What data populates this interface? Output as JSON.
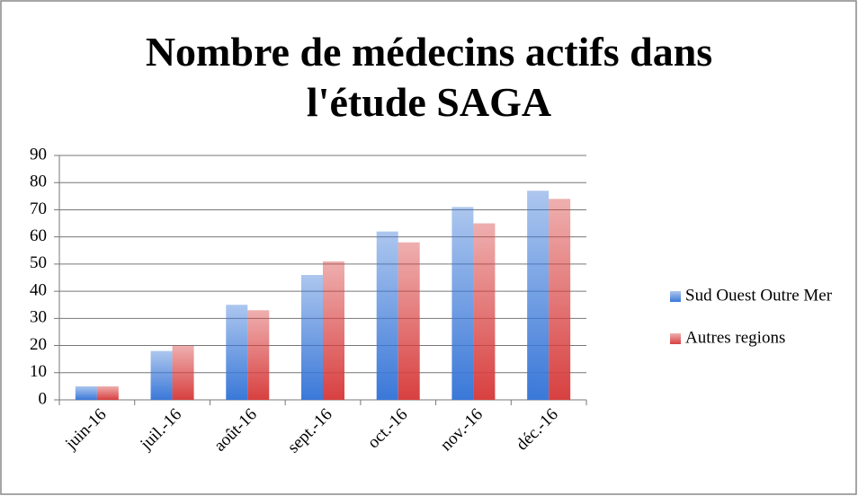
{
  "chart_data": {
    "type": "bar",
    "title": "Nombre de médecins actifs dans l'étude SAGA",
    "categories": [
      "juin-16",
      "juil.-16",
      "août-16",
      "sept.-16",
      "oct.-16",
      "nov.-16",
      "déc.-16"
    ],
    "series": [
      {
        "name": "Sud Ouest Outre Mer",
        "color": "#3a78d8",
        "values": [
          5,
          18,
          35,
          46,
          62,
          71,
          77
        ]
      },
      {
        "name": "Autres regions",
        "color": "#d84040",
        "values": [
          5,
          20,
          33,
          51,
          58,
          65,
          74
        ]
      }
    ],
    "ylim": [
      0,
      90
    ],
    "yticks": [
      0,
      10,
      20,
      30,
      40,
      50,
      60,
      70,
      80,
      90
    ],
    "grid": true,
    "legend": "right"
  }
}
